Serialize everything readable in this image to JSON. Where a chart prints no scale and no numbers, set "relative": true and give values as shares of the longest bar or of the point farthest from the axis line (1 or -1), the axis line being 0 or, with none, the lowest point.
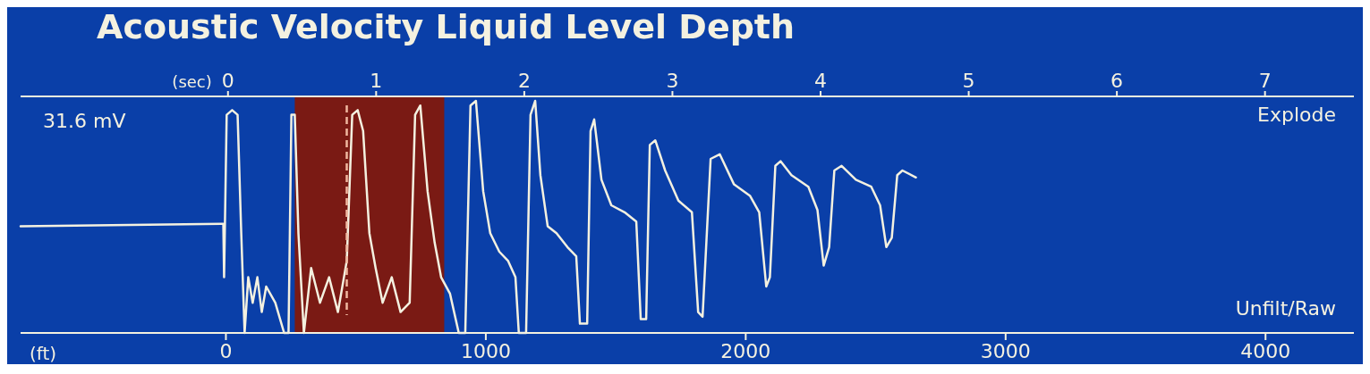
{
  "chart_data": {
    "type": "line",
    "title": "Acoustic Velocity Liquid Level Depth",
    "xlabel": "(ft)",
    "x2label": "(sec)",
    "relative": true,
    "xlim": [
      -790,
      4340
    ],
    "xticks": [
      0,
      1000,
      2000,
      3000,
      {
        "value": 4000,
        "label": "4000"
      }
    ],
    "x2lim": [
      -1.4,
      7.6
    ],
    "x2ticks": [
      0,
      1,
      2,
      3,
      4,
      5,
      6,
      7
    ],
    "grid": false,
    "annotations": [
      "31.6 mV",
      "Explode",
      "Unfilt/Raw"
    ],
    "bands": [
      {
        "axis": "x",
        "from": 265,
        "to": 840,
        "color": "#7a1a14"
      }
    ],
    "ref_lines": [
      {
        "axis": "x",
        "value": 465,
        "line_style": "dashed",
        "color": "#f0b8a0"
      }
    ],
    "series": [
      {
        "color": "#f4f1e0",
        "x": [
          -790,
          -17,
          -10,
          -7,
          3,
          24,
          45,
          59,
          72,
          86,
          103,
          121,
          138,
          155,
          190,
          224,
          241,
          252,
          265,
          279,
          300,
          328,
          362,
          397,
          431,
          465,
          486,
          507,
          528,
          552,
          576,
          603,
          638,
          672,
          707,
          728,
          748,
          776,
          803,
          828,
          862,
          896,
          921,
          941,
          962,
          990,
          1017,
          1052,
          1086,
          1114,
          1127,
          1155,
          1172,
          1190,
          1210,
          1238,
          1272,
          1314,
          1348,
          1362,
          1390,
          1403,
          1417,
          1445,
          1483,
          1534,
          1579,
          1596,
          1617,
          1631,
          1652,
          1690,
          1741,
          1793,
          1817,
          1834,
          1865,
          1900,
          1955,
          2017,
          2052,
          2079,
          2093,
          2114,
          2134,
          2176,
          2241,
          2276,
          2300,
          2321,
          2341,
          2369,
          2424,
          2483,
          2517,
          2541,
          2562,
          2583,
          2603,
          2655
        ],
        "values": [
          0.46,
          0.47,
          0.47,
          0.24,
          0.94,
          0.96,
          0.94,
          0.43,
          0,
          0.24,
          0.13,
          0.24,
          0.09,
          0.2,
          0.13,
          0,
          0,
          0.94,
          0.94,
          0.43,
          0,
          0.28,
          0.13,
          0.24,
          0.09,
          0.31,
          0.94,
          0.96,
          0.87,
          0.43,
          0.28,
          0.13,
          0.24,
          0.09,
          0.13,
          0.94,
          0.98,
          0.61,
          0.39,
          0.24,
          0.17,
          0,
          0,
          0.98,
          1,
          0.61,
          0.43,
          0.35,
          0.31,
          0.24,
          0,
          0,
          0.94,
          1,
          0.68,
          0.46,
          0.43,
          0.37,
          0.33,
          0.04,
          0.04,
          0.87,
          0.92,
          0.66,
          0.55,
          0.52,
          0.48,
          0.06,
          0.06,
          0.81,
          0.83,
          0.7,
          0.57,
          0.52,
          0.09,
          0.07,
          0.75,
          0.77,
          0.64,
          0.59,
          0.52,
          0.2,
          0.24,
          0.72,
          0.74,
          0.68,
          0.63,
          0.53,
          0.29,
          0.37,
          0.7,
          0.72,
          0.66,
          0.63,
          0.55,
          0.37,
          0.41,
          0.68,
          0.7,
          0.67
        ]
      }
    ]
  }
}
